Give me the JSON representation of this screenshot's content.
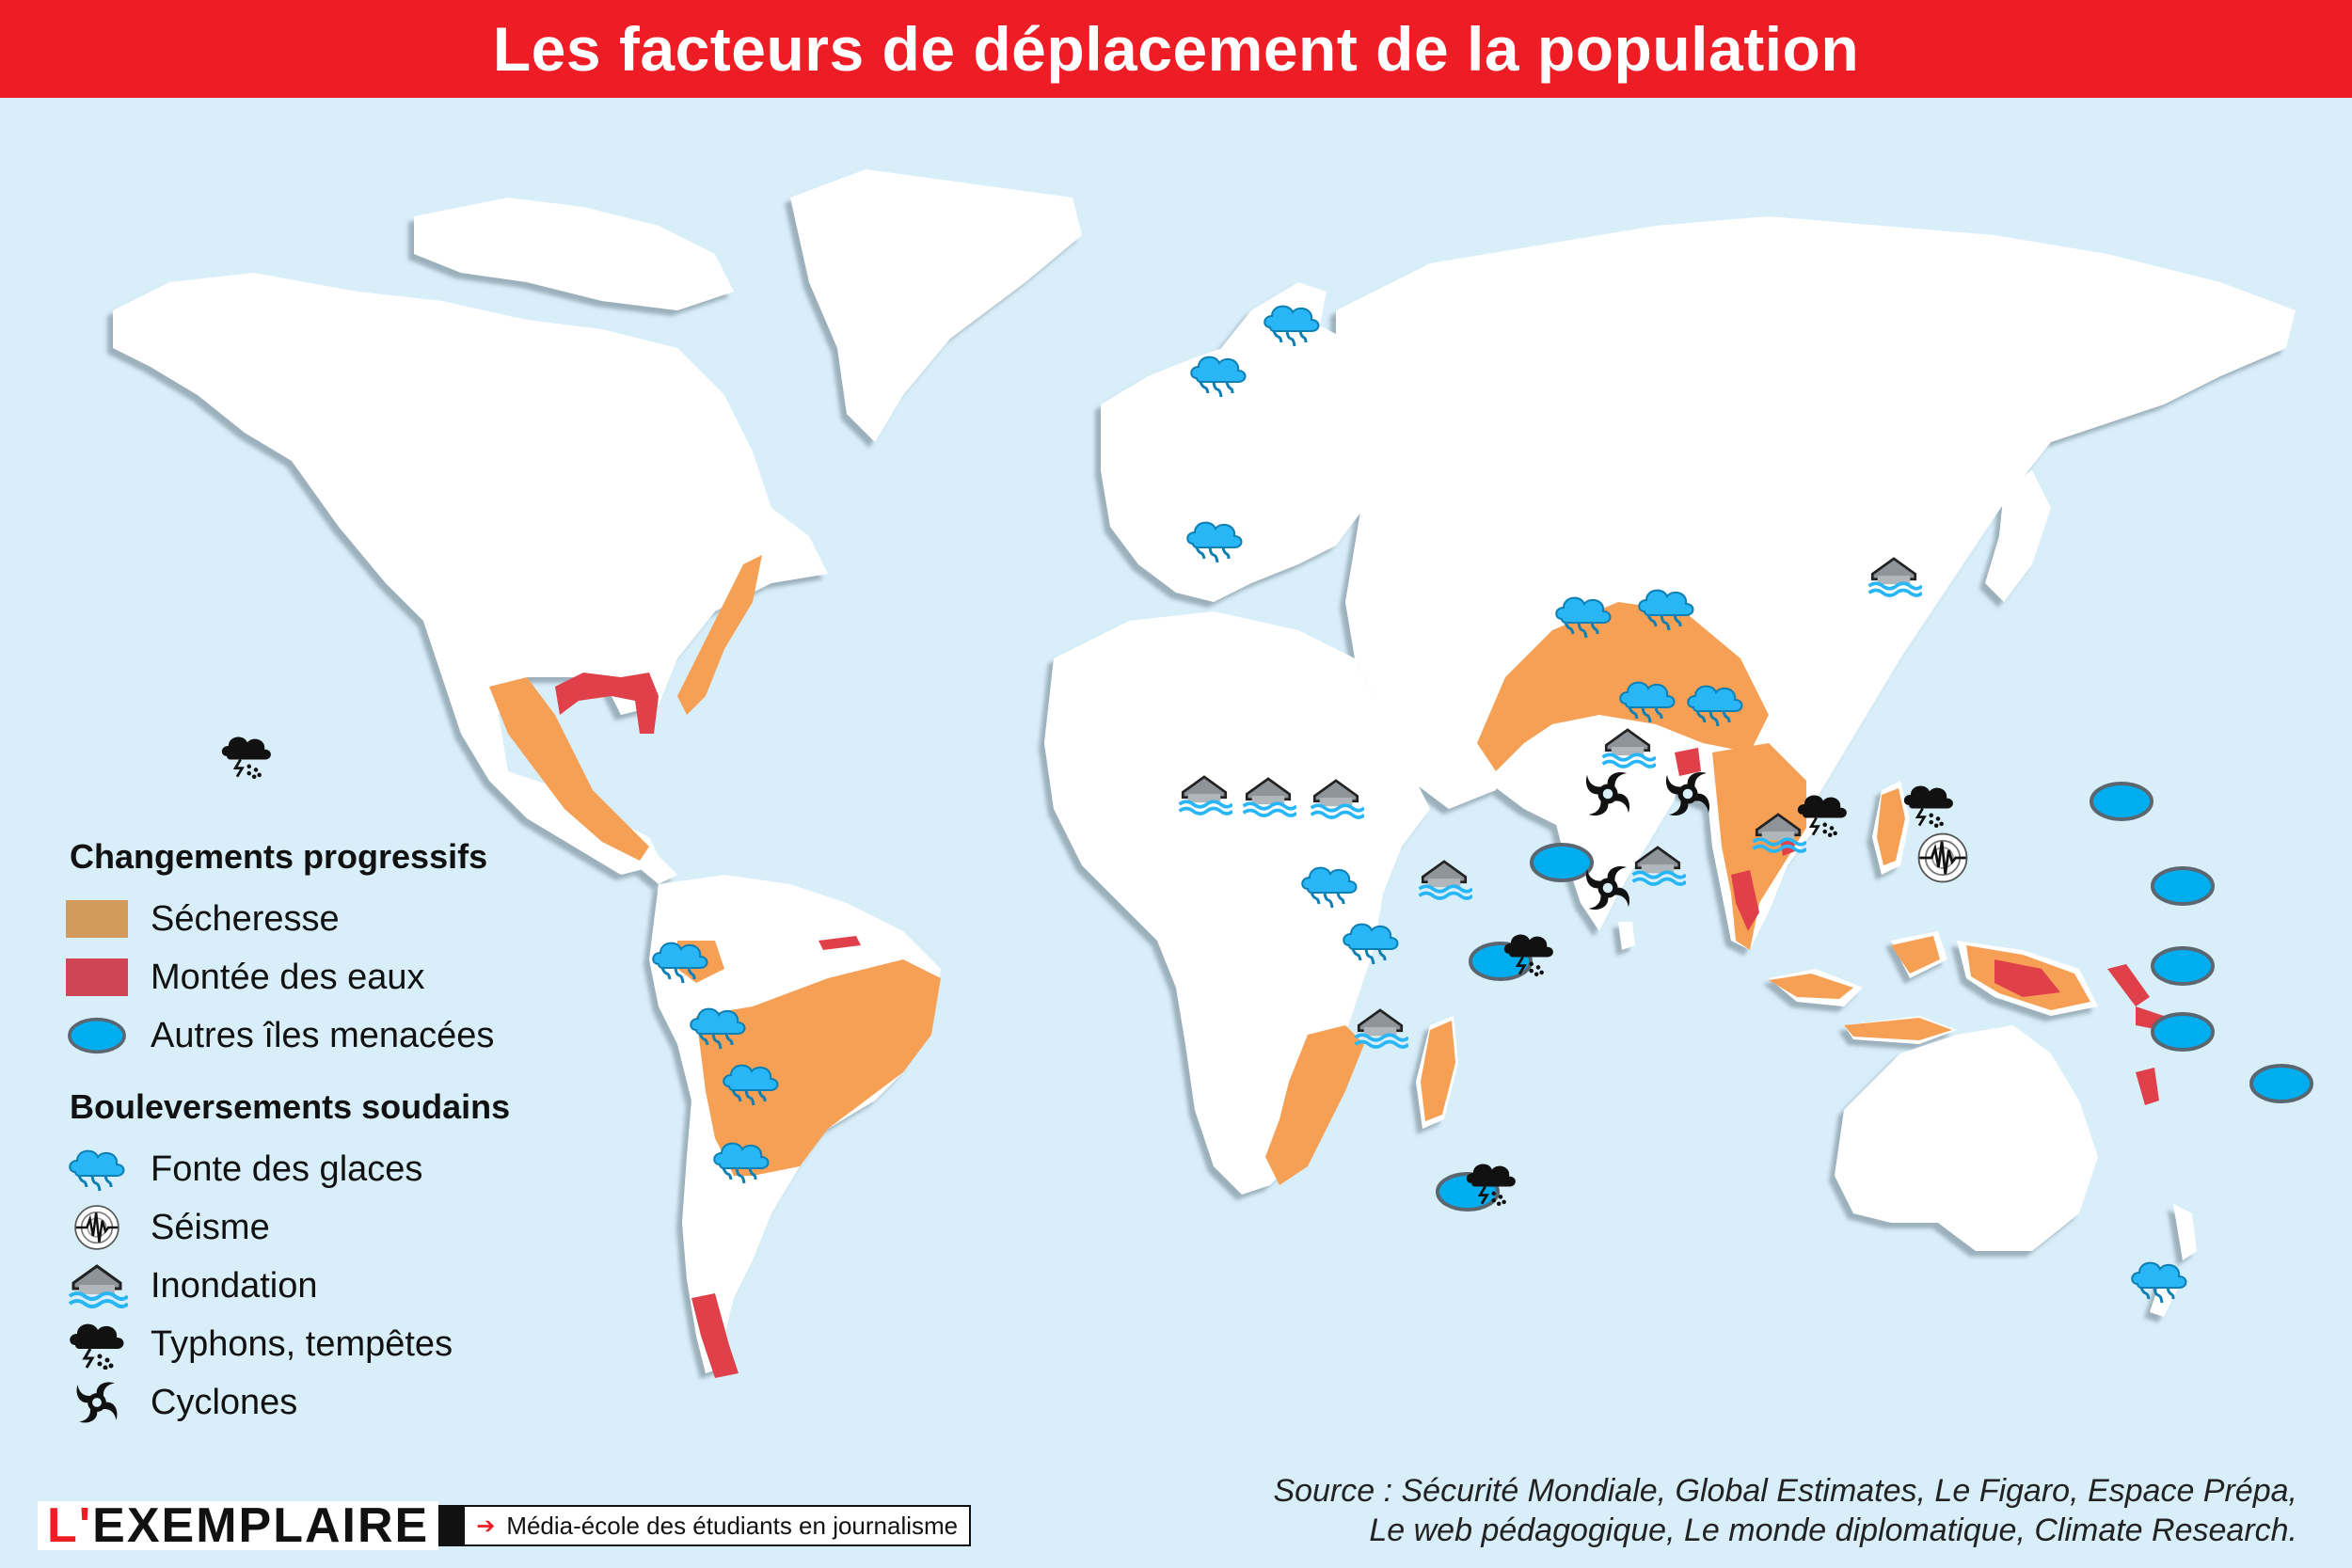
{
  "title": "Les facteurs de déplacement de la population",
  "legend": {
    "section1": "Changements progressifs",
    "section2": "Bouleversements soudains",
    "drought": "Sécheresse",
    "sea_rise": "Montée des eaux",
    "islands": "Autres îles menacées",
    "ice_melt": "Fonte des glaces",
    "earthquake": "Séisme",
    "flood": "Inondation",
    "typhoon": "Typhons, tempêtes",
    "cyclone": "Cyclones"
  },
  "colors": {
    "title_bar": "#ee1d25",
    "ocean": "#d8eef9",
    "land": "#ffffff",
    "drought": "#f6a055",
    "sea_rise": "#e0404a",
    "islands": "#00aeef",
    "ice": "#29b6f6"
  },
  "source_line1": "Source : Sécurité Mondiale, Global Estimates, Le Figaro, Espace Prépa,",
  "source_line2": "Le web pédagogique, Le monde diplomatique, Climate Research.",
  "brand": {
    "logo_first": "L'",
    "logo_rest": "EXEMPLAIRE",
    "tagline": "Média-école des étudiants en journalisme"
  },
  "icons": {
    "ice_melt": "ice-melt-icon",
    "earthquake": "earthquake-icon",
    "flood": "flood-icon",
    "typhoon": "typhoon-icon",
    "cyclone": "cyclone-icon",
    "island": "island-icon"
  }
}
